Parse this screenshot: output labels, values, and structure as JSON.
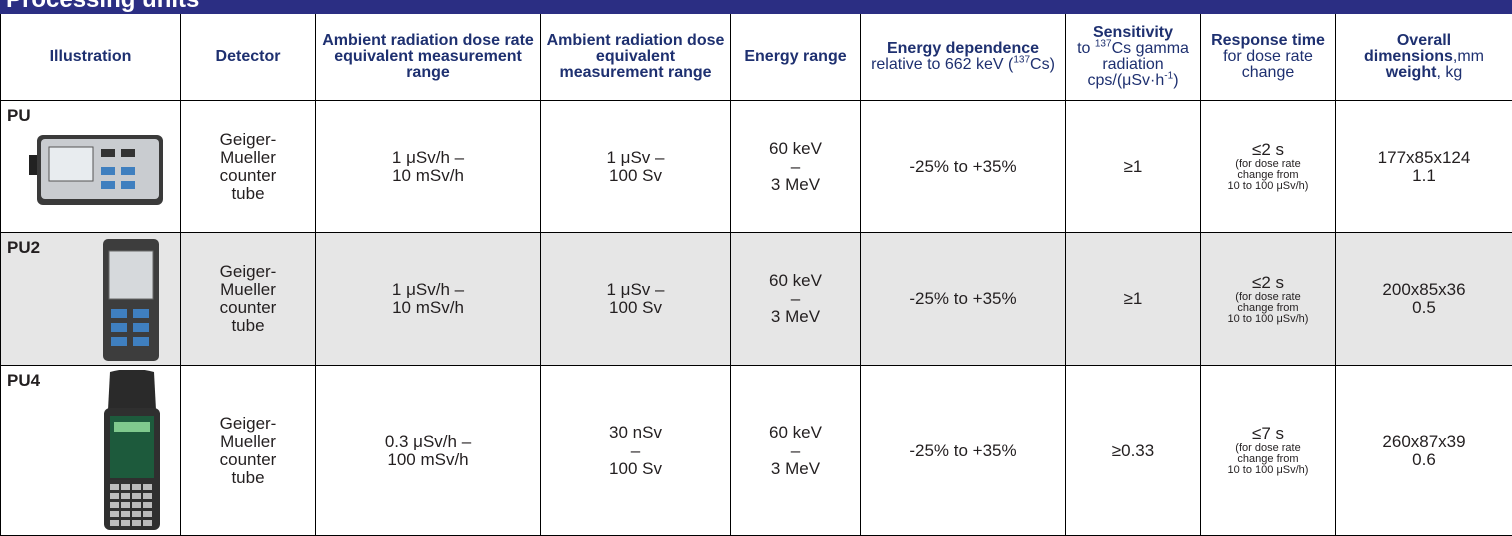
{
  "header": {
    "title": "Processing units"
  },
  "table": {
    "columns": [
      [
        "Illustration"
      ],
      [
        "Detector"
      ],
      [
        "Ambient radiation dose rate equivalent measurement range"
      ],
      [
        "Ambient radiation dose equivalent measurement range"
      ],
      [
        "Energy range"
      ],
      [
        "Energy dependence",
        "relative to 662 keV (",
        "137",
        "Cs)"
      ],
      [
        "Sensitivity",
        "to ",
        "137",
        "Cs gamma radiation cps/(μSv·h",
        "-1",
        ")"
      ],
      [
        "Response time",
        "for dose rate change"
      ],
      [
        "Overall dimensions",
        ",mm",
        "weight",
        ", kg"
      ]
    ],
    "rows": [
      {
        "name": "PU",
        "detector": [
          "Geiger-",
          "Mueller",
          "counter",
          "tube"
        ],
        "dose_rate": [
          "1 μSv/h –",
          "10 mSv/h"
        ],
        "dose": [
          "1 μSv –",
          "100 Sv"
        ],
        "energy": [
          "60 keV",
          "–",
          "3 MeV"
        ],
        "dependence": [
          "-25% to +35%"
        ],
        "sensitivity": [
          "≥1"
        ],
        "response": [
          "≤2 s"
        ],
        "response_note": [
          "(for dose rate",
          "change from",
          "10 to 100 μSv/h)"
        ],
        "dimensions": [
          "177x85x124",
          "1.1"
        ]
      },
      {
        "name": "PU2",
        "detector": [
          "Geiger-",
          "Mueller",
          "counter",
          "tube"
        ],
        "dose_rate": [
          "1 μSv/h –",
          "10 mSv/h"
        ],
        "dose": [
          "1 μSv –",
          "100 Sv"
        ],
        "energy": [
          "60 keV",
          "–",
          "3 MeV"
        ],
        "dependence": [
          "-25% to +35%"
        ],
        "sensitivity": [
          "≥1"
        ],
        "response": [
          "≤2 s"
        ],
        "response_note": [
          "(for dose rate",
          "change from",
          "10 to 100 μSv/h)"
        ],
        "dimensions": [
          "200x85x36",
          "0.5"
        ]
      },
      {
        "name": "PU4",
        "detector": [
          "Geiger-",
          "Mueller",
          "counter",
          "tube"
        ],
        "dose_rate": [
          "0.3 μSv/h –",
          "100 mSv/h"
        ],
        "dose": [
          "30 nSv",
          "–",
          "100 Sv"
        ],
        "energy": [
          "60 keV",
          "–",
          "3 MeV"
        ],
        "dependence": [
          "-25% to +35%"
        ],
        "sensitivity": [
          "≥0.33"
        ],
        "response": [
          "≤7 s"
        ],
        "response_note": [
          "(for dose rate",
          "change from",
          "10 to 100 μSv/h)"
        ],
        "dimensions": [
          "260x87x39",
          "0.6"
        ]
      }
    ]
  }
}
